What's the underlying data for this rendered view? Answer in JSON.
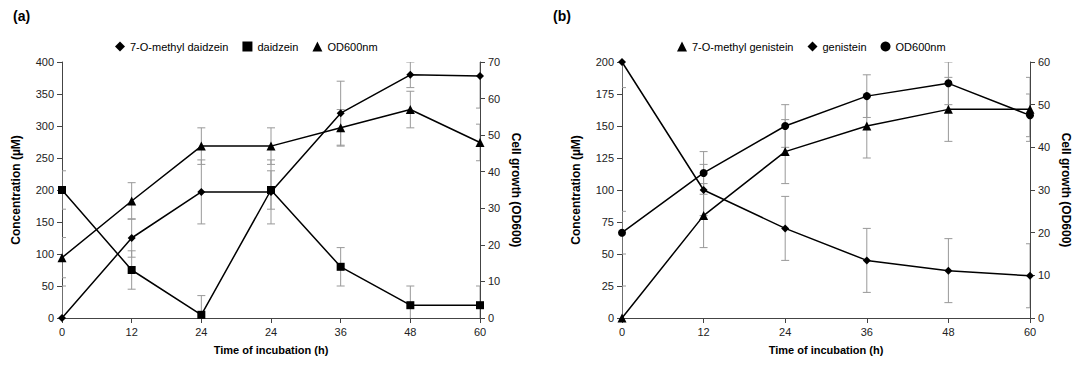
{
  "chart_data": [
    {
      "type": "line",
      "title": "(a)",
      "categories": [
        "0",
        "12",
        "24",
        "24",
        "36",
        "48",
        "60"
      ],
      "x_label": "Time of incubation (h)",
      "y_label": "Concentration (µM)",
      "y2_label": "Cell growth (OD600)",
      "ylim": [
        0,
        400
      ],
      "yticks": [
        0,
        50,
        100,
        150,
        200,
        250,
        300,
        350,
        400
      ],
      "y2lim": [
        0,
        70
      ],
      "y2ticks": [
        0,
        10,
        20,
        30,
        40,
        50,
        60,
        70
      ],
      "grid": false,
      "legend": "top",
      "series": [
        {
          "name": "7-O-methyl daidzein",
          "color": "#000000",
          "marker": "diamond",
          "values": [
            0,
            125,
            197,
            197,
            320,
            380,
            378
          ],
          "errors": [
            50,
            30,
            50,
            50,
            50,
            20,
            50
          ]
        },
        {
          "name": "daidzein",
          "color": "#000000",
          "marker": "square",
          "values": [
            200,
            75,
            5,
            200,
            80,
            20,
            20
          ],
          "errors": [
            30,
            30,
            30,
            30,
            30,
            30,
            30
          ]
        },
        {
          "name": "OD600nm",
          "color": "#000000",
          "marker": "triangle",
          "axis": "y2",
          "values": [
            16.5,
            32,
            47,
            47,
            52,
            57,
            48
          ],
          "errors": [
            5.5,
            5,
            5,
            5,
            5,
            5,
            5
          ]
        }
      ]
    },
    {
      "type": "line",
      "title": "(b)",
      "categories": [
        "0",
        "12",
        "24",
        "36",
        "48",
        "60"
      ],
      "x_label": "Time of incubation (h)",
      "y_label": "Concentration (µM)",
      "y2_label": "Cell growth (OD600)",
      "ylim": [
        0,
        200
      ],
      "yticks": [
        0,
        25,
        50,
        75,
        100,
        125,
        150,
        175,
        200
      ],
      "y2lim": [
        0,
        60
      ],
      "y2ticks": [
        0,
        10,
        20,
        30,
        40,
        50,
        60
      ],
      "grid": false,
      "legend": "top",
      "series": [
        {
          "name": "7-O-methyl genistein",
          "color": "#000000",
          "marker": "triangle",
          "values": [
            0,
            80,
            130,
            150,
            163,
            163
          ],
          "errors": [
            25,
            25,
            25,
            25,
            25,
            25
          ]
        },
        {
          "name": "genistein",
          "color": "#000000",
          "marker": "diamond",
          "values": [
            200,
            100,
            70,
            45,
            37,
            33
          ],
          "errors": [
            20,
            20,
            25,
            25,
            25,
            25
          ]
        },
        {
          "name": "OD600nm",
          "color": "#000000",
          "marker": "circle",
          "axis": "y2",
          "values": [
            20,
            34,
            45,
            52,
            55,
            47.5
          ],
          "errors": [
            5,
            5,
            5,
            5,
            5,
            5
          ]
        }
      ]
    }
  ]
}
